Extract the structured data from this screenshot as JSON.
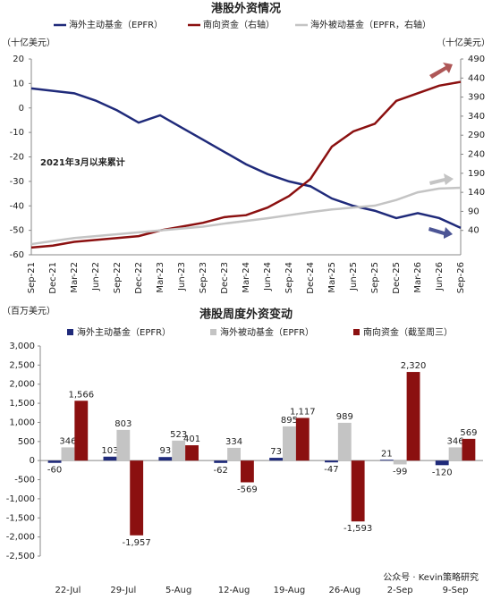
{
  "chart_data": [
    {
      "type": "line",
      "title": "港股外资情况",
      "ylabel": "（十亿美元）",
      "y2label": "（十亿美元）",
      "annotation": "2021年3月以来累计",
      "categories": [
        "Sep-21",
        "Dec-21",
        "Mar-22",
        "Jun-22",
        "Sep-22",
        "Dec-22",
        "Mar-23",
        "Jun-23",
        "Sep-23",
        "Dec-23",
        "Mar-24",
        "Jun-24",
        "Sep-24",
        "Dec-24",
        "Mar-25",
        "Jun-25",
        "Sep-25",
        "Dec-25",
        "Mar-26",
        "Jun-26",
        "Sep-26"
      ],
      "series": [
        {
          "name": "海外主动基金（EPFR）",
          "color": "#1f2a7a",
          "values": [
            8,
            7,
            6,
            3,
            -1,
            -6,
            -3,
            -8,
            -13,
            -18,
            -23,
            -27,
            -30,
            -32,
            -37,
            -40,
            -42,
            -45,
            -43,
            -45,
            -49
          ]
        },
        {
          "name": "南向资金（右轴）",
          "color": "#8b1010",
          "axis": "y2",
          "values": [
            -5,
            0,
            10,
            15,
            20,
            25,
            40,
            50,
            60,
            75,
            80,
            100,
            130,
            175,
            260,
            300,
            320,
            380,
            400,
            420,
            430
          ]
        },
        {
          "name": "海外被动基金（EPFR，右轴）",
          "color": "#c4c4c4",
          "axis": "y2",
          "values": [
            4,
            12,
            20,
            25,
            30,
            35,
            40,
            45,
            50,
            58,
            65,
            72,
            80,
            88,
            95,
            100,
            105,
            120,
            140,
            150,
            152
          ]
        }
      ],
      "ylim": [
        -60,
        20
      ],
      "yticks": [
        20,
        10,
        0,
        -10,
        -20,
        -30,
        -40,
        -50,
        -60
      ],
      "y2lim": [
        -24,
        490
      ],
      "y2ticks": [
        40,
        90,
        140,
        190,
        240,
        290,
        340,
        390,
        440,
        490
      ]
    },
    {
      "type": "bar",
      "title": "港股周度外资变动",
      "ylabel": "（百万美元）",
      "categories": [
        "22-Jul",
        "29-Jul",
        "5-Aug",
        "12-Aug",
        "19-Aug",
        "26-Aug",
        "2-Sep",
        "9-Sep"
      ],
      "series": [
        {
          "name": "海外主动基金（EPFR）",
          "color": "#1f2a7a",
          "values": [
            -60,
            103,
            93,
            -62,
            73,
            -47,
            21,
            -120
          ]
        },
        {
          "name": "海外被动基金（EPFR）",
          "color": "#c4c4c4",
          "values": [
            346,
            803,
            523,
            334,
            895,
            989,
            -99,
            346
          ]
        },
        {
          "name": "南向资金（截至周三）",
          "color": "#8b1010",
          "values": [
            1566,
            -1957,
            401,
            -569,
            1117,
            -1593,
            2320,
            569
          ],
          "value_labels": [
            "1,566",
            "-1,957",
            "401",
            "-569",
            "1,117",
            "-1,593",
            "2,320",
            "569"
          ]
        }
      ],
      "ylim": [
        -2500,
        3000
      ],
      "yticks": [
        {
          "value": -2500,
          "label": "-2,500"
        },
        {
          "value": -2000,
          "label": "-2,000"
        },
        {
          "value": -1500,
          "label": "-1,500"
        },
        {
          "value": -1000,
          "label": "-1,000"
        },
        -500,
        0,
        500,
        {
          "value": 1000,
          "label": "1,000"
        },
        {
          "value": 1500,
          "label": "1,500"
        },
        {
          "value": 2000,
          "label": "2,000"
        },
        {
          "value": 2500,
          "label": "2,500"
        },
        {
          "value": 3000,
          "label": "3,000"
        }
      ],
      "watermark": "公众号 · Kevin策略研究"
    }
  ]
}
